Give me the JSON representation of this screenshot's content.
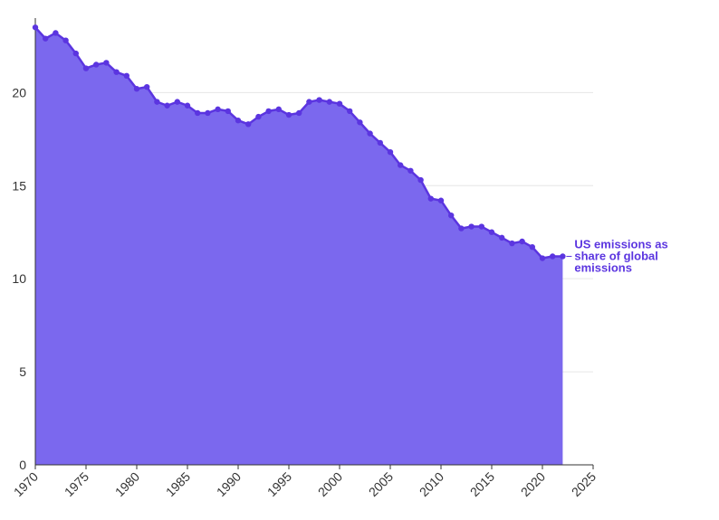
{
  "chart_data": {
    "type": "area",
    "title": "",
    "xlabel": "",
    "ylabel": "",
    "xlim": [
      1970,
      2025
    ],
    "ylim": [
      0,
      24
    ],
    "x_ticks": [
      1970,
      1975,
      1980,
      1985,
      1990,
      1995,
      2000,
      2005,
      2010,
      2015,
      2020,
      2025
    ],
    "y_ticks": [
      0,
      5,
      10,
      15,
      20
    ],
    "grid": "horizontal",
    "colors": {
      "area": "#7B68EE",
      "line": "#5B35E0",
      "label": "#5B35E0",
      "grid": "#e6e6e6",
      "axis": "#333333"
    },
    "series": [
      {
        "name": "US emissions as share of global emissions",
        "label_lines": [
          "US emissions as",
          "share of global",
          "emissions"
        ],
        "x": [
          1970,
          1971,
          1972,
          1973,
          1974,
          1975,
          1976,
          1977,
          1978,
          1979,
          1980,
          1981,
          1982,
          1983,
          1984,
          1985,
          1986,
          1987,
          1988,
          1989,
          1990,
          1991,
          1992,
          1993,
          1994,
          1995,
          1996,
          1997,
          1998,
          1999,
          2000,
          2001,
          2002,
          2003,
          2004,
          2005,
          2006,
          2007,
          2008,
          2009,
          2010,
          2011,
          2012,
          2013,
          2014,
          2015,
          2016,
          2017,
          2018,
          2019,
          2020,
          2021,
          2022
        ],
        "values": [
          23.5,
          22.9,
          23.2,
          22.8,
          22.1,
          21.3,
          21.5,
          21.6,
          21.1,
          20.9,
          20.2,
          20.3,
          19.5,
          19.3,
          19.5,
          19.3,
          18.9,
          18.9,
          19.1,
          19.0,
          18.5,
          18.3,
          18.7,
          19.0,
          19.1,
          18.8,
          18.9,
          19.5,
          19.6,
          19.5,
          19.4,
          19.0,
          18.4,
          17.8,
          17.3,
          16.8,
          16.1,
          15.8,
          15.3,
          14.3,
          14.2,
          13.4,
          12.7,
          12.8,
          12.8,
          12.5,
          12.2,
          11.9,
          12.0,
          11.7,
          11.1,
          11.2,
          11.2
        ]
      }
    ]
  }
}
